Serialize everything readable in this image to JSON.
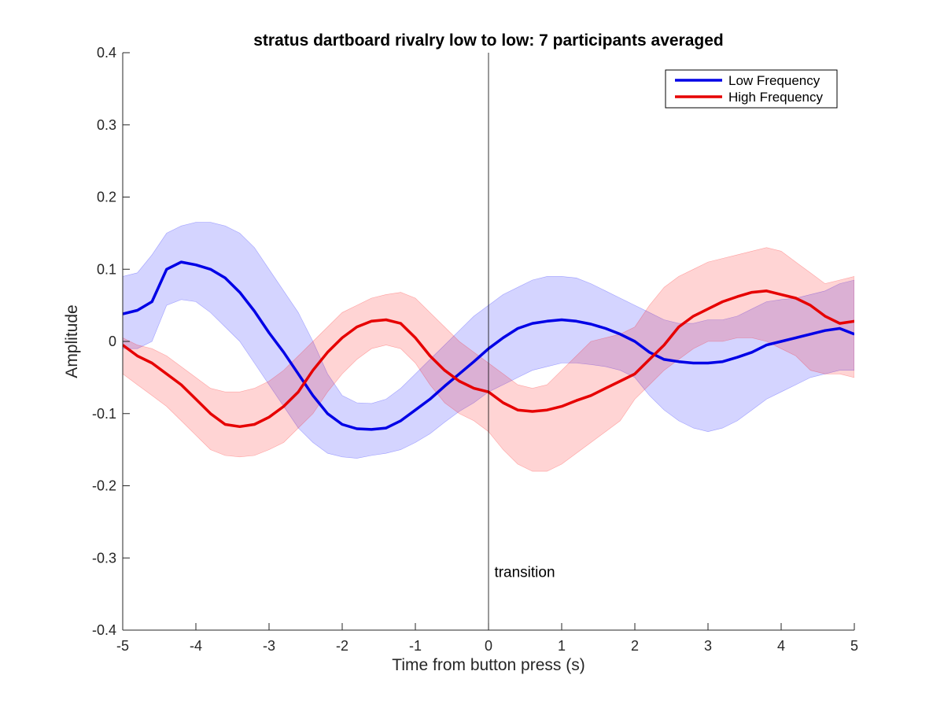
{
  "chart_data": {
    "type": "line",
    "title": "stratus dartboard rivalry low to low: 7 participants averaged",
    "xlabel": "Time from button press (s)",
    "ylabel": "Amplitude",
    "xlim": [
      -5,
      5
    ],
    "ylim": [
      -0.4,
      0.4
    ],
    "x_ticks": [
      -5,
      -4,
      -3,
      -2,
      -1,
      0,
      1,
      2,
      3,
      4,
      5
    ],
    "x_tick_labels": [
      "-5",
      "-4",
      "-3",
      "-2",
      "-1",
      "0",
      "1",
      "2",
      "3",
      "4",
      "5"
    ],
    "y_ticks": [
      -0.4,
      -0.3,
      -0.2,
      -0.1,
      0,
      0.1,
      0.2,
      0.3,
      0.4
    ],
    "y_tick_labels": [
      "-0.4",
      "-0.3",
      "-0.2",
      "-0.1",
      "0",
      "0.1",
      "0.2",
      "0.3",
      "0.4"
    ],
    "grid": false,
    "legend_position": "top-right",
    "annotations": [
      {
        "text": "transition",
        "x": 0.08,
        "y": -0.32,
        "vline_x": 0
      }
    ],
    "series": [
      {
        "name": "Low Frequency",
        "color": "#0000e6",
        "band_color": "#0000ff",
        "x": [
          -5.0,
          -4.8,
          -4.6,
          -4.4,
          -4.2,
          -4.0,
          -3.8,
          -3.6,
          -3.4,
          -3.2,
          -3.0,
          -2.8,
          -2.6,
          -2.4,
          -2.2,
          -2.0,
          -1.8,
          -1.6,
          -1.4,
          -1.2,
          -1.0,
          -0.8,
          -0.6,
          -0.4,
          -0.2,
          0.0,
          0.2,
          0.4,
          0.6,
          0.8,
          1.0,
          1.2,
          1.4,
          1.6,
          1.8,
          2.0,
          2.2,
          2.4,
          2.6,
          2.8,
          3.0,
          3.2,
          3.4,
          3.6,
          3.8,
          4.0,
          4.2,
          4.4,
          4.6,
          4.8,
          5.0
        ],
        "y": [
          0.038,
          0.043,
          0.055,
          0.1,
          0.11,
          0.106,
          0.1,
          0.088,
          0.068,
          0.042,
          0.012,
          -0.015,
          -0.045,
          -0.075,
          -0.1,
          -0.115,
          -0.121,
          -0.122,
          -0.12,
          -0.11,
          -0.095,
          -0.08,
          -0.062,
          -0.045,
          -0.028,
          -0.01,
          0.005,
          0.018,
          0.025,
          0.028,
          0.03,
          0.028,
          0.024,
          0.018,
          0.01,
          0.0,
          -0.015,
          -0.025,
          -0.028,
          -0.03,
          -0.03,
          -0.028,
          -0.022,
          -0.015,
          -0.005,
          0.0,
          0.005,
          0.01,
          0.015,
          0.018,
          0.01
        ],
        "upper": [
          0.09,
          0.095,
          0.12,
          0.15,
          0.16,
          0.165,
          0.165,
          0.16,
          0.15,
          0.13,
          0.1,
          0.07,
          0.04,
          0.0,
          -0.045,
          -0.075,
          -0.085,
          -0.086,
          -0.08,
          -0.065,
          -0.045,
          -0.025,
          -0.005,
          0.015,
          0.035,
          0.05,
          0.065,
          0.075,
          0.085,
          0.09,
          0.09,
          0.088,
          0.08,
          0.07,
          0.06,
          0.05,
          0.04,
          0.03,
          0.025,
          0.025,
          0.03,
          0.03,
          0.035,
          0.045,
          0.055,
          0.058,
          0.06,
          0.065,
          0.07,
          0.08,
          0.085
        ],
        "lower": [
          -0.01,
          -0.01,
          0.0,
          0.05,
          0.058,
          0.055,
          0.04,
          0.02,
          0.0,
          -0.03,
          -0.06,
          -0.09,
          -0.12,
          -0.14,
          -0.155,
          -0.16,
          -0.162,
          -0.158,
          -0.155,
          -0.15,
          -0.14,
          -0.128,
          -0.112,
          -0.097,
          -0.085,
          -0.07,
          -0.06,
          -0.05,
          -0.04,
          -0.035,
          -0.03,
          -0.03,
          -0.032,
          -0.035,
          -0.04,
          -0.05,
          -0.075,
          -0.095,
          -0.11,
          -0.12,
          -0.125,
          -0.12,
          -0.11,
          -0.095,
          -0.08,
          -0.07,
          -0.06,
          -0.05,
          -0.045,
          -0.04,
          -0.04
        ]
      },
      {
        "name": "High Frequency",
        "color": "#e60000",
        "band_color": "#ff0000",
        "x": [
          -5.0,
          -4.8,
          -4.6,
          -4.4,
          -4.2,
          -4.0,
          -3.8,
          -3.6,
          -3.4,
          -3.2,
          -3.0,
          -2.8,
          -2.6,
          -2.4,
          -2.2,
          -2.0,
          -1.8,
          -1.6,
          -1.4,
          -1.2,
          -1.0,
          -0.8,
          -0.6,
          -0.4,
          -0.2,
          0.0,
          0.2,
          0.4,
          0.6,
          0.8,
          1.0,
          1.2,
          1.4,
          1.6,
          1.8,
          2.0,
          2.2,
          2.4,
          2.6,
          2.8,
          3.0,
          3.2,
          3.4,
          3.6,
          3.8,
          4.0,
          4.2,
          4.4,
          4.6,
          4.8,
          5.0
        ],
        "y": [
          -0.005,
          -0.02,
          -0.03,
          -0.045,
          -0.06,
          -0.08,
          -0.1,
          -0.115,
          -0.118,
          -0.115,
          -0.105,
          -0.09,
          -0.07,
          -0.04,
          -0.015,
          0.005,
          0.02,
          0.028,
          0.03,
          0.025,
          0.005,
          -0.02,
          -0.04,
          -0.055,
          -0.065,
          -0.07,
          -0.085,
          -0.095,
          -0.097,
          -0.095,
          -0.09,
          -0.082,
          -0.075,
          -0.065,
          -0.055,
          -0.045,
          -0.025,
          -0.005,
          0.02,
          0.035,
          0.045,
          0.055,
          0.062,
          0.068,
          0.07,
          0.065,
          0.06,
          0.05,
          0.035,
          0.025,
          0.028
        ],
        "upper": [
          0.005,
          -0.005,
          -0.01,
          -0.02,
          -0.035,
          -0.05,
          -0.065,
          -0.07,
          -0.07,
          -0.065,
          -0.055,
          -0.04,
          -0.02,
          0.0,
          0.02,
          0.04,
          0.05,
          0.06,
          0.065,
          0.068,
          0.06,
          0.04,
          0.02,
          0.0,
          -0.015,
          -0.03,
          -0.045,
          -0.06,
          -0.065,
          -0.06,
          -0.04,
          -0.02,
          0.0,
          0.005,
          0.01,
          0.02,
          0.05,
          0.075,
          0.09,
          0.1,
          0.11,
          0.115,
          0.12,
          0.125,
          0.13,
          0.125,
          0.11,
          0.095,
          0.08,
          0.085,
          0.09
        ],
        "lower": [
          -0.045,
          -0.06,
          -0.075,
          -0.09,
          -0.11,
          -0.13,
          -0.15,
          -0.158,
          -0.16,
          -0.158,
          -0.15,
          -0.14,
          -0.12,
          -0.1,
          -0.07,
          -0.045,
          -0.025,
          -0.01,
          -0.005,
          -0.01,
          -0.03,
          -0.06,
          -0.085,
          -0.1,
          -0.11,
          -0.125,
          -0.15,
          -0.17,
          -0.18,
          -0.18,
          -0.17,
          -0.155,
          -0.14,
          -0.125,
          -0.11,
          -0.08,
          -0.06,
          -0.04,
          -0.025,
          -0.01,
          0.0,
          0.0,
          0.005,
          0.005,
          0.0,
          -0.01,
          -0.02,
          -0.04,
          -0.045,
          -0.045,
          -0.05
        ]
      }
    ]
  }
}
